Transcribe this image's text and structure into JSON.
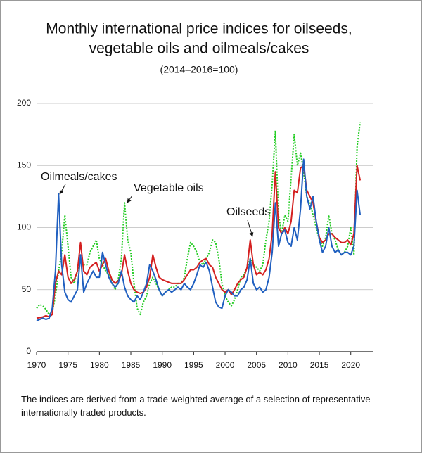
{
  "chart_data": {
    "type": "line",
    "title": [
      "Monthly international price indices for oilseeds,",
      "vegetable oils and oilmeals/cakes"
    ],
    "subtitle": "(2014–2016=100)",
    "note": "The indices are derived from a trade-weighted average of a selection of representative internationally traded products.",
    "x": [
      1970,
      1970.5,
      1971,
      1971.5,
      1972,
      1972.5,
      1973,
      1973.5,
      1974,
      1974.5,
      1975,
      1975.5,
      1976,
      1976.5,
      1977,
      1977.5,
      1978,
      1978.5,
      1979,
      1979.5,
      1980,
      1980.5,
      1981,
      1981.5,
      1982,
      1982.5,
      1983,
      1983.5,
      1984,
      1984.5,
      1985,
      1985.5,
      1986,
      1986.5,
      1987,
      1987.5,
      1988,
      1988.5,
      1989,
      1989.5,
      1990,
      1990.5,
      1991,
      1991.5,
      1992,
      1992.5,
      1993,
      1993.5,
      1994,
      1994.5,
      1995,
      1995.5,
      1996,
      1996.5,
      1997,
      1997.5,
      1998,
      1998.5,
      1999,
      1999.5,
      2000,
      2000.5,
      2001,
      2001.5,
      2002,
      2002.5,
      2003,
      2003.5,
      2004,
      2004.5,
      2005,
      2005.5,
      2006,
      2006.5,
      2007,
      2007.5,
      2008,
      2008.5,
      2009,
      2009.5,
      2010,
      2010.5,
      2011,
      2011.5,
      2012,
      2012.5,
      2013,
      2013.5,
      2014,
      2014.5,
      2015,
      2015.5,
      2016,
      2016.5,
      2017,
      2017.5,
      2018,
      2018.5,
      2019,
      2019.5,
      2020,
      2020.5,
      2021,
      2021.5
    ],
    "series": [
      {
        "name": "Vegetable oils",
        "color": "#22cc22",
        "dashed": true,
        "values": [
          35,
          38,
          37,
          34,
          30,
          32,
          45,
          65,
          80,
          110,
          85,
          60,
          55,
          65,
          75,
          70,
          70,
          80,
          85,
          90,
          75,
          70,
          65,
          62,
          55,
          50,
          58,
          75,
          120,
          90,
          80,
          55,
          35,
          30,
          40,
          45,
          55,
          60,
          55,
          50,
          45,
          48,
          50,
          52,
          52,
          55,
          55,
          60,
          75,
          88,
          85,
          80,
          72,
          70,
          75,
          80,
          90,
          88,
          75,
          55,
          45,
          40,
          37,
          42,
          50,
          60,
          62,
          68,
          75,
          70,
          68,
          65,
          70,
          90,
          105,
          135,
          178,
          110,
          95,
          110,
          105,
          140,
          175,
          150,
          160,
          145,
          125,
          120,
          110,
          100,
          90,
          85,
          92,
          110,
          95,
          90,
          82,
          78,
          80,
          85,
          100,
          78,
          165,
          185
        ]
      },
      {
        "name": "Oilseeds",
        "color": "#d42020",
        "dashed": false,
        "values": [
          27,
          27.5,
          28,
          29,
          28,
          30,
          55,
          65,
          62,
          78,
          60,
          55,
          58,
          65,
          88,
          65,
          62,
          68,
          70,
          72,
          65,
          70,
          75,
          65,
          58,
          55,
          57,
          62,
          78,
          65,
          55,
          50,
          48,
          47,
          48,
          52,
          60,
          78,
          68,
          60,
          58,
          57,
          56,
          55,
          55,
          55,
          55,
          58,
          62,
          66,
          66,
          68,
          72,
          74,
          75,
          70,
          68,
          60,
          55,
          50,
          48,
          50,
          46,
          50,
          55,
          58,
          60,
          68,
          90,
          70,
          62,
          64,
          62,
          66,
          75,
          95,
          145,
          100,
          95,
          100,
          95,
          105,
          130,
          128,
          148,
          150,
          130,
          125,
          120,
          105,
          92,
          88,
          90,
          95,
          95,
          92,
          90,
          88,
          88,
          90,
          86,
          95,
          150,
          138
        ]
      },
      {
        "name": "Oilmeals/cakes",
        "color": "#1f5fc0",
        "dashed": false,
        "values": [
          25,
          26,
          27,
          26,
          27,
          35,
          65,
          127,
          70,
          48,
          42,
          40,
          45,
          50,
          78,
          48,
          55,
          60,
          65,
          60,
          60,
          80,
          70,
          60,
          55,
          52,
          55,
          65,
          52,
          45,
          42,
          40,
          45,
          42,
          48,
          55,
          70,
          65,
          58,
          50,
          45,
          48,
          50,
          48,
          50,
          52,
          50,
          55,
          52,
          50,
          55,
          62,
          70,
          68,
          72,
          65,
          52,
          40,
          36,
          35,
          45,
          50,
          48,
          45,
          45,
          50,
          52,
          58,
          75,
          55,
          50,
          52,
          48,
          50,
          60,
          80,
          120,
          85,
          95,
          98,
          88,
          85,
          100,
          90,
          115,
          155,
          125,
          115,
          125,
          105,
          90,
          80,
          85,
          100,
          85,
          80,
          82,
          78,
          80,
          80,
          78,
          85,
          130,
          110
        ]
      }
    ],
    "xlim": [
      1970,
      2023.5
    ],
    "xticks": [
      1970,
      1975,
      1980,
      1985,
      1990,
      1995,
      2000,
      2005,
      2010,
      2015,
      2020
    ],
    "ylim": [
      0,
      200
    ],
    "yticks": [
      0,
      50,
      100,
      150,
      200
    ],
    "grid": true
  }
}
